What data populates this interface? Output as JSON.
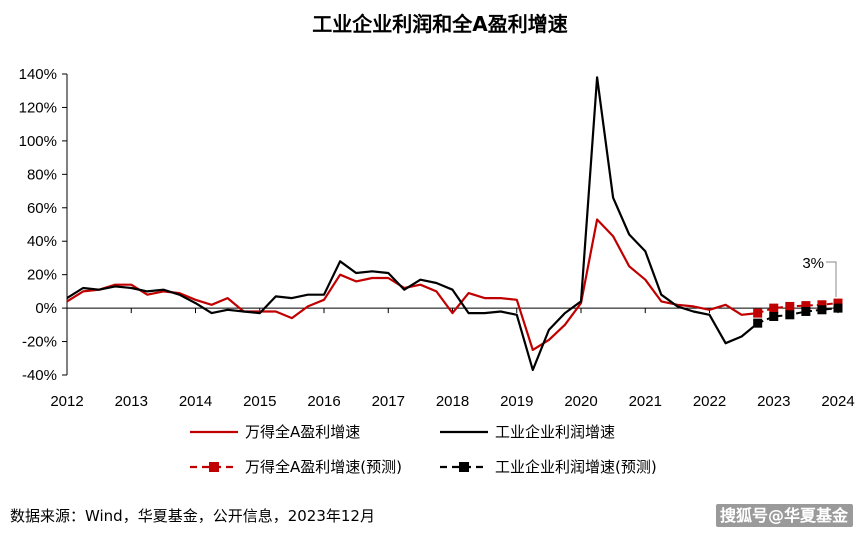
{
  "chart_data": {
    "type": "line",
    "title": "工业企业利润和全A盈利增速",
    "xlabel": "",
    "ylabel": "",
    "x_ticks": [
      "2012",
      "2013",
      "2014",
      "2015",
      "2016",
      "2017",
      "2018",
      "2019",
      "2020",
      "2021",
      "2022",
      "2023",
      "2024"
    ],
    "y_ticks": [
      "-40%",
      "-20%",
      "0%",
      "20%",
      "40%",
      "60%",
      "80%",
      "100%",
      "120%",
      "140%"
    ],
    "ylim": [
      -40,
      140
    ],
    "xlim": [
      2012.0,
      2024.0
    ],
    "grid": false,
    "legend_position": "bottom",
    "series": [
      {
        "name": "万得全A盈利增速",
        "color": "#c00000",
        "style": "solid",
        "x": [
          2012.0,
          2012.25,
          2012.5,
          2012.75,
          2013.0,
          2013.25,
          2013.5,
          2013.75,
          2014.0,
          2014.25,
          2014.5,
          2014.75,
          2015.0,
          2015.25,
          2015.5,
          2015.75,
          2016.0,
          2016.25,
          2016.5,
          2016.75,
          2017.0,
          2017.25,
          2017.5,
          2017.75,
          2018.0,
          2018.25,
          2018.5,
          2018.75,
          2019.0,
          2019.25,
          2019.5,
          2019.75,
          2020.0,
          2020.25,
          2020.5,
          2020.75,
          2021.0,
          2021.25,
          2021.5,
          2021.75,
          2022.0,
          2022.25,
          2022.5,
          2022.75
        ],
        "values": [
          4,
          10,
          11,
          14,
          14,
          8,
          10,
          9,
          5,
          2,
          6,
          -2,
          -2,
          -2,
          -6,
          1,
          5,
          20,
          16,
          18,
          18,
          12,
          14,
          10,
          -3,
          9,
          6,
          6,
          5,
          -25,
          -19,
          -10,
          3,
          53,
          43,
          25,
          17,
          4,
          2,
          1,
          -1,
          2,
          -4,
          -3
        ]
      },
      {
        "name": "工业企业利润增速",
        "color": "#000000",
        "style": "solid",
        "x": [
          2012.0,
          2012.25,
          2012.5,
          2012.75,
          2013.0,
          2013.25,
          2013.5,
          2013.75,
          2014.0,
          2014.25,
          2014.5,
          2014.75,
          2015.0,
          2015.25,
          2015.5,
          2015.75,
          2016.0,
          2016.25,
          2016.5,
          2016.75,
          2017.0,
          2017.25,
          2017.5,
          2017.75,
          2018.0,
          2018.25,
          2018.5,
          2018.75,
          2019.0,
          2019.25,
          2019.5,
          2019.75,
          2020.0,
          2020.25,
          2020.5,
          2020.75,
          2021.0,
          2021.25,
          2021.5,
          2021.75,
          2022.0,
          2022.25,
          2022.5,
          2022.75
        ],
        "values": [
          6,
          12,
          11,
          13,
          12,
          10,
          11,
          8,
          3,
          -3,
          -1,
          -2,
          -3,
          7,
          6,
          8,
          8,
          28,
          21,
          22,
          21,
          11,
          17,
          15,
          11,
          -3,
          -3,
          -2,
          -4,
          -37,
          -13,
          -3,
          4,
          138,
          66,
          44,
          34,
          8,
          1,
          -2,
          -4,
          -21,
          -17,
          -9
        ]
      },
      {
        "name": "万得全A盈利增速(预测)",
        "color": "#c00000",
        "style": "dashed-square",
        "x": [
          2022.75,
          2023.0,
          2023.25,
          2023.5,
          2023.75,
          2024.0
        ],
        "values": [
          -3,
          0,
          1,
          1.5,
          2,
          3
        ]
      },
      {
        "name": "工业企业利润增速(预测)",
        "color": "#000000",
        "style": "dashed-square",
        "x": [
          2022.75,
          2023.0,
          2023.25,
          2023.5,
          2023.75,
          2024.0
        ],
        "values": [
          -9,
          -5,
          -4,
          -2,
          -1,
          0
        ]
      }
    ],
    "annotations": [
      {
        "text": "3%",
        "x": 2024.0,
        "y": 3
      }
    ]
  },
  "source_note": "数据来源：Wind，华夏基金，公开信息，2023年12月",
  "watermark": "搜狐号@华夏基金"
}
